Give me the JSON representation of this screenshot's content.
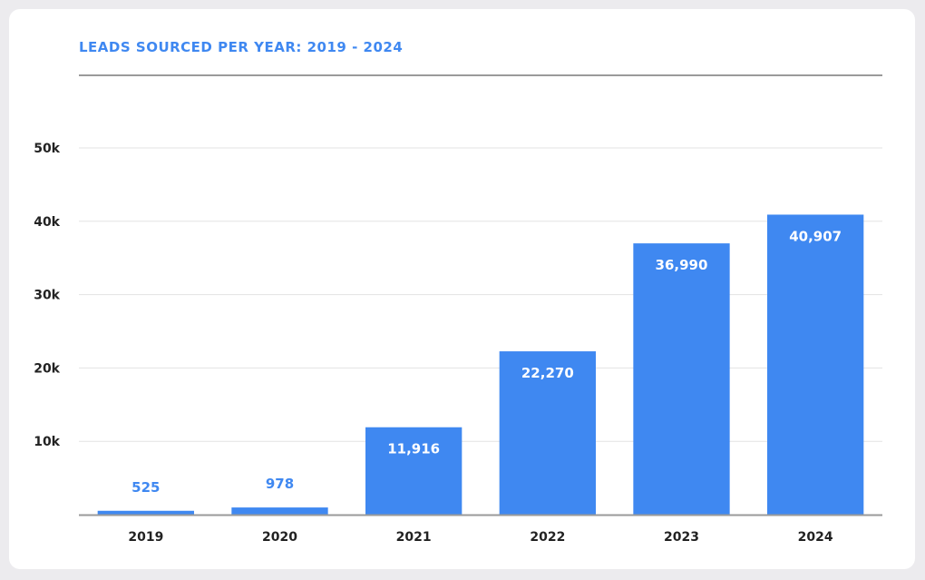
{
  "chart_data": {
    "type": "bar",
    "title": "LEADS SOURCED PER YEAR: 2019 - 2024",
    "xlabel": "",
    "ylabel": "",
    "categories": [
      "2019",
      "2020",
      "2021",
      "2022",
      "2023",
      "2024"
    ],
    "values": [
      525,
      978,
      11916,
      22270,
      36990,
      40907
    ],
    "data_labels": [
      "525",
      "978",
      "11,916",
      "22,270",
      "36,990",
      "40,907"
    ],
    "ylim": [
      0,
      50000
    ],
    "yticks": [
      {
        "value": 10000,
        "label": "10k"
      },
      {
        "value": 20000,
        "label": "20k"
      },
      {
        "value": 30000,
        "label": "30k"
      },
      {
        "value": 40000,
        "label": "40k"
      },
      {
        "value": 50000,
        "label": "50k"
      }
    ],
    "grid": true,
    "legend": "none",
    "colors": {
      "bar": "#3f88f1",
      "title": "#3f88f1",
      "label_inside": "#ffffff",
      "label_outside": "#3f88f1",
      "axis_text": "#222222",
      "grid": "#e3e3e3",
      "axis_line": "#9a9a9a"
    }
  }
}
